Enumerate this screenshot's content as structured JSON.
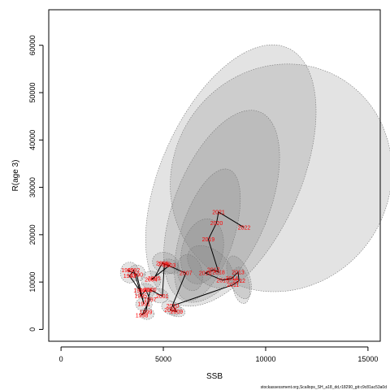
{
  "chart_data": {
    "type": "scatter",
    "title": "",
    "xlabel": "SSB",
    "ylabel": "R(age 3)",
    "xlim": [
      -600,
      15600
    ],
    "ylim": [
      -2500,
      67500
    ],
    "xticks": [
      0,
      5000,
      10000,
      15000
    ],
    "yticks": [
      0,
      10000,
      20000,
      30000,
      40000,
      50000,
      60000
    ],
    "grid": false,
    "legend": "none",
    "colors": {
      "line": "#000000",
      "label": "#ff0000",
      "ellipse_fill": "#7f7f7f",
      "ellipse_stroke": "#777777"
    },
    "points": [
      {
        "year": "1989",
        "x": 3250,
        "y": 12500
      },
      {
        "year": "1990",
        "x": 3700,
        "y": 11600
      },
      {
        "year": "1991",
        "x": 4050,
        "y": 5400
      },
      {
        "year": "1992",
        "x": 3550,
        "y": 12500
      },
      {
        "year": "1993",
        "x": 3350,
        "y": 11300
      },
      {
        "year": "1994",
        "x": 3850,
        "y": 8200
      },
      {
        "year": "1995",
        "x": 3900,
        "y": 7100
      },
      {
        "year": "1996",
        "x": 4150,
        "y": 8300
      },
      {
        "year": "1997",
        "x": 4350,
        "y": 6300
      },
      {
        "year": "1998",
        "x": 3950,
        "y": 3000
      },
      {
        "year": "1999",
        "x": 4150,
        "y": 3700
      },
      {
        "year": "2000",
        "x": 4350,
        "y": 8400
      },
      {
        "year": "2001",
        "x": 4950,
        "y": 7000
      },
      {
        "year": "2002",
        "x": 5050,
        "y": 13800
      },
      {
        "year": "2003",
        "x": 5300,
        "y": 13500
      },
      {
        "year": "2004",
        "x": 4400,
        "y": 10500
      },
      {
        "year": "2005",
        "x": 4550,
        "y": 10800
      },
      {
        "year": "2006",
        "x": 4950,
        "y": 14000
      },
      {
        "year": "2007",
        "x": 6100,
        "y": 11900
      },
      {
        "year": "2008",
        "x": 5350,
        "y": 4100
      },
      {
        "year": "2009",
        "x": 5650,
        "y": 3800
      },
      {
        "year": "2010",
        "x": 5450,
        "y": 5000
      },
      {
        "year": "2011",
        "x": 8400,
        "y": 9400
      },
      {
        "year": "2012",
        "x": 8700,
        "y": 10300
      },
      {
        "year": "2013",
        "x": 8650,
        "y": 12100
      },
      {
        "year": "2014",
        "x": 8350,
        "y": 10800
      },
      {
        "year": "2015",
        "x": 7900,
        "y": 10400
      },
      {
        "year": "2016",
        "x": 7050,
        "y": 11900
      },
      {
        "year": "2017",
        "x": 7450,
        "y": 12600
      },
      {
        "year": "2018",
        "x": 7700,
        "y": 12100
      },
      {
        "year": "2019",
        "x": 7200,
        "y": 19000
      },
      {
        "year": "2020",
        "x": 7600,
        "y": 22500
      },
      {
        "year": "2021",
        "x": 7700,
        "y": 24800
      },
      {
        "year": "2022",
        "x": 8950,
        "y": 21500
      }
    ],
    "path_order": [
      "1989",
      "1990",
      "1991",
      "1992",
      "1993",
      "1994",
      "1995",
      "1996",
      "1997",
      "1998",
      "1999",
      "2000",
      "2001",
      "2002",
      "2003",
      "2004",
      "2005",
      "2006",
      "2007",
      "2008",
      "2009",
      "2010",
      "2011",
      "2012",
      "2013",
      "2014",
      "2015",
      "2016",
      "2017",
      "2018",
      "2019",
      "2020",
      "2021",
      "2022"
    ],
    "ellipses": [
      {
        "cx": 10750,
        "cy": 32000,
        "rx": 5300,
        "ry": 24500,
        "rot": 33,
        "opacity": 0.22
      },
      {
        "cx": 8300,
        "cy": 32500,
        "rx": 3400,
        "ry": 29500,
        "rot": 24,
        "opacity": 0.22
      },
      {
        "cx": 7850,
        "cy": 26000,
        "rx": 2300,
        "ry": 21500,
        "rot": 22,
        "opacity": 0.22
      },
      {
        "cx": 7150,
        "cy": 20000,
        "rx": 1300,
        "ry": 14500,
        "rot": 18,
        "opacity": 0.22
      },
      {
        "cx": 6900,
        "cy": 16500,
        "rx": 1000,
        "ry": 7000,
        "rot": 14,
        "opacity": 0.22
      },
      {
        "cx": 7300,
        "cy": 13200,
        "rx": 1300,
        "ry": 3500,
        "rot": 40,
        "opacity": 0.22
      },
      {
        "cx": 6300,
        "cy": 12000,
        "rx": 900,
        "ry": 2600,
        "rot": 75,
        "opacity": 0.22
      },
      {
        "cx": 8700,
        "cy": 11000,
        "rx": 1100,
        "ry": 2200,
        "rot": 70,
        "opacity": 0.22
      },
      {
        "cx": 8800,
        "cy": 9300,
        "rx": 900,
        "ry": 1800,
        "rot": 80,
        "opacity": 0.22
      },
      {
        "cx": 5100,
        "cy": 14000,
        "rx": 650,
        "ry": 2200,
        "rot": 20,
        "opacity": 0.22
      },
      {
        "cx": 5350,
        "cy": 13300,
        "rx": 450,
        "ry": 1400,
        "rot": 30,
        "opacity": 0.22
      },
      {
        "cx": 3350,
        "cy": 12000,
        "rx": 450,
        "ry": 2200,
        "rot": 0,
        "opacity": 0.22
      },
      {
        "cx": 3700,
        "cy": 11900,
        "rx": 420,
        "ry": 1700,
        "rot": 10,
        "opacity": 0.22
      },
      {
        "cx": 4400,
        "cy": 10400,
        "rx": 480,
        "ry": 1900,
        "rot": 10,
        "opacity": 0.22
      },
      {
        "cx": 4100,
        "cy": 8100,
        "rx": 480,
        "ry": 1600,
        "rot": 0,
        "opacity": 0.22
      },
      {
        "cx": 4800,
        "cy": 7100,
        "rx": 450,
        "ry": 1500,
        "rot": 10,
        "opacity": 0.22
      },
      {
        "cx": 4050,
        "cy": 5300,
        "rx": 400,
        "ry": 1400,
        "rot": 0,
        "opacity": 0.22
      },
      {
        "cx": 4200,
        "cy": 3300,
        "rx": 350,
        "ry": 1200,
        "rot": 0,
        "opacity": 0.22
      },
      {
        "cx": 5400,
        "cy": 4500,
        "rx": 500,
        "ry": 1400,
        "rot": 20,
        "opacity": 0.22
      },
      {
        "cx": 5650,
        "cy": 3800,
        "rx": 420,
        "ry": 1100,
        "rot": 10,
        "opacity": 0.22
      }
    ]
  },
  "footer": {
    "credit": "stockassessment.org,Scallops_SH_a18_dd,r18290_git:c9c81ac53a0d"
  }
}
